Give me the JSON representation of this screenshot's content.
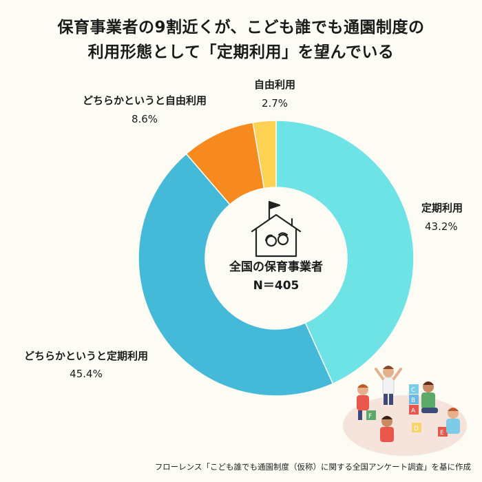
{
  "title": {
    "line1": "保育事業者の9割近くが、こども誰でも通園制度の",
    "line2": "利用形態として「定期利用」を望んでいる"
  },
  "chart_data": {
    "type": "pie",
    "donut": true,
    "categories": [
      "定期利用",
      "どちらかというと定期利用",
      "どちらかというと自由利用",
      "自由利用"
    ],
    "values": [
      43.2,
      45.4,
      8.6,
      2.7
    ],
    "value_labels": [
      "43.2%",
      "45.4%",
      "8.6%",
      "2.7%"
    ],
    "colors": [
      "#6ee3e6",
      "#45b9d8",
      "#f78a1e",
      "#fdd152"
    ],
    "center_label": {
      "line1": "全国の保育事業者",
      "line2": "N＝405"
    }
  },
  "source": "フローレンス「こども誰でも通園制度（仮称）に関する全国アンケート調査」を基に作成",
  "icons": [
    "house-children-icon",
    "kids-playing-illustration"
  ]
}
